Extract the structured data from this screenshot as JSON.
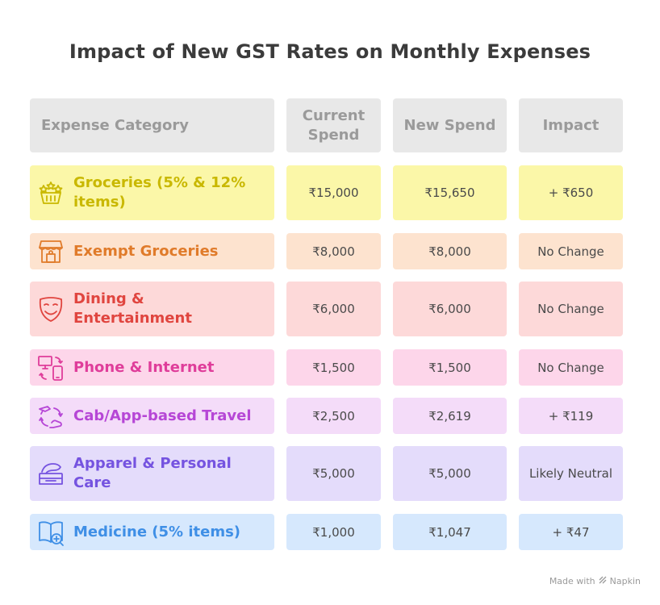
{
  "title": "Impact of New GST Rates on Monthly Expenses",
  "headers": {
    "category": "Expense Category",
    "current": "Current Spend",
    "new": "New Spend",
    "impact": "Impact"
  },
  "rows": [
    {
      "category": "Groceries (5% & 12% items)",
      "current": "₹15,000",
      "new": "₹15,650",
      "impact": "+ ₹650",
      "icon": "grocery-basket-icon",
      "label_color": "#c9b800",
      "bg": "#fbf7a8"
    },
    {
      "category": "Exempt Groceries",
      "current": "₹8,000",
      "new": "₹8,000",
      "impact": "No Change",
      "icon": "market-stall-icon",
      "label_color": "#e07b2a",
      "bg": "#fde3cf"
    },
    {
      "category": "Dining & Entertainment",
      "current": "₹6,000",
      "new": "₹6,000",
      "impact": "No Change",
      "icon": "theater-mask-icon",
      "label_color": "#e0453f",
      "bg": "#fdd9d9"
    },
    {
      "category": "Phone & Internet",
      "current": "₹1,500",
      "new": "₹1,500",
      "impact": "No Change",
      "icon": "devices-icon",
      "label_color": "#df3d9a",
      "bg": "#fdd6ea"
    },
    {
      "category": "Cab/App-based Travel",
      "current": "₹2,500",
      "new": "₹2,619",
      "impact": "+ ₹119",
      "icon": "travel-cycle-icon",
      "label_color": "#b646d6",
      "bg": "#f4dcf9"
    },
    {
      "category": "Apparel & Personal Care",
      "current": "₹5,000",
      "new": "₹5,000",
      "impact": "Likely Neutral",
      "icon": "folded-clothes-icon",
      "label_color": "#7553e0",
      "bg": "#e4dcfb"
    },
    {
      "category": "Medicine (5% items)",
      "current": "₹1,000",
      "new": "₹1,047",
      "impact": "+ ₹47",
      "icon": "medical-book-icon",
      "label_color": "#3f8fe6",
      "bg": "#d6e8fd"
    }
  ],
  "footer": {
    "made_with": "Made with",
    "brand": "Napkin"
  }
}
